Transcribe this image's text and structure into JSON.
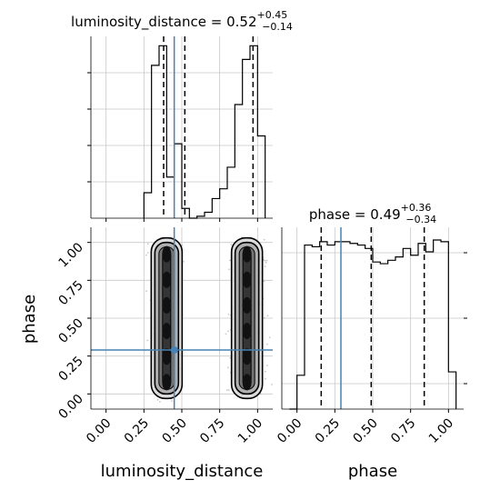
{
  "colors": {
    "truth": "#4682b4",
    "hist": "#000000",
    "grid": "#c8c8c8",
    "scatter": "#9a9a9a"
  },
  "chart_data": {
    "type": "corner",
    "parameters": [
      "luminosity_distance",
      "phase"
    ],
    "truths": {
      "luminosity_distance": 0.45,
      "phase": 0.29
    },
    "titles": {
      "luminosity_distance": {
        "prefix": "luminosity_distance = ",
        "median": "0.52",
        "plus": "+0.45",
        "minus": "−0.14"
      },
      "phase": {
        "prefix": "phase = ",
        "median": "0.49",
        "plus": "+0.36",
        "minus": "−0.34"
      }
    },
    "quantiles": {
      "luminosity_distance": [
        0.38,
        0.52,
        0.97
      ],
      "phase": [
        0.16,
        0.49,
        0.84
      ]
    },
    "xlabels": [
      "luminosity_distance",
      "phase"
    ],
    "ylabel": "phase",
    "ticks": {
      "luminosity_distance": [
        "0.00",
        "0.25",
        "0.50",
        "0.75",
        "1.00"
      ],
      "phase": [
        "0.00",
        "0.25",
        "0.50",
        "0.75",
        "1.00"
      ]
    },
    "hist_luminosity_distance": {
      "edges": [
        0.25,
        0.3,
        0.35,
        0.4,
        0.45,
        0.5,
        0.55,
        0.6,
        0.65,
        0.7,
        0.75,
        0.8,
        0.85,
        0.9,
        0.95,
        1.0,
        1.05
      ],
      "counts": [
        0.13,
        0.78,
        0.88,
        0.21,
        0.38,
        0.05,
        0.0,
        0.01,
        0.03,
        0.1,
        0.15,
        0.26,
        0.58,
        0.81,
        0.88,
        0.42
      ]
    },
    "hist_phase": {
      "edges": [
        -0.05,
        0.0,
        0.05,
        0.1,
        0.15,
        0.2,
        0.25,
        0.3,
        0.35,
        0.4,
        0.45,
        0.5,
        0.55,
        0.6,
        0.65,
        0.7,
        0.75,
        0.8,
        0.85,
        0.9,
        0.95,
        1.0,
        1.05
      ],
      "counts": [
        0.0,
        0.2,
        0.97,
        0.96,
        0.99,
        0.97,
        0.99,
        0.99,
        0.98,
        0.97,
        0.95,
        0.87,
        0.86,
        0.88,
        0.9,
        0.95,
        0.91,
        0.98,
        0.93,
        1.0,
        0.99,
        0.22
      ]
    },
    "scatter_clusters": [
      {
        "x": 0.4,
        "xspread": 0.04,
        "ymin": 0.0,
        "ymax": 1.0
      },
      {
        "x": 0.93,
        "xspread": 0.05,
        "ymin": 0.0,
        "ymax": 1.0
      }
    ]
  }
}
